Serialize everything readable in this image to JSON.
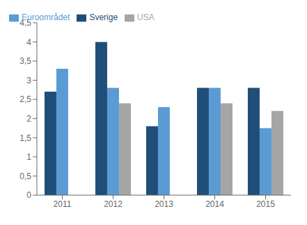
{
  "chart_data": {
    "type": "bar",
    "categories": [
      "2011",
      "2012",
      "2013",
      "2014",
      "2015"
    ],
    "series": [
      {
        "name": "Sverige",
        "color": "#1f4e79",
        "values": [
          2.7,
          4.0,
          1.8,
          2.8,
          2.8
        ]
      },
      {
        "name": "Euroområdet",
        "color": "#5b9bd5",
        "values": [
          3.3,
          2.8,
          2.3,
          2.8,
          1.75
        ]
      },
      {
        "name": "USA",
        "color": "#a5a5a5",
        "values": [
          0.0,
          2.4,
          0.0,
          2.4,
          2.2
        ]
      }
    ],
    "ylim": [
      0,
      4.5
    ],
    "yticks": [
      0,
      {
        "value": 0.5,
        "label": "0,5"
      },
      1,
      {
        "value": 1.5,
        "label": "1,5"
      },
      2,
      {
        "value": 2.5,
        "label": "2,5"
      },
      3,
      {
        "value": 3.5,
        "label": "3,5"
      },
      4,
      {
        "value": 4.5,
        "label": "4,5"
      }
    ],
    "grid": false,
    "legend": "upper left"
  }
}
